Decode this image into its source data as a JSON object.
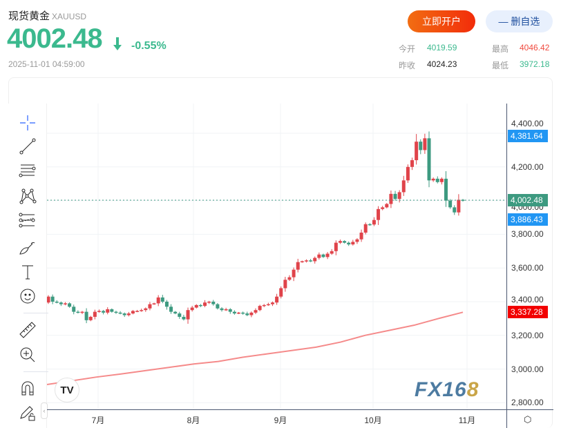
{
  "header": {
    "name": "现货黄金",
    "symbol": "XAUUSD",
    "price": "4002.48",
    "change": "-0.55%",
    "timestamp": "2025-11-01 04:59:00",
    "direction": "down"
  },
  "buttons": {
    "open_account": "立即开户",
    "remove_watch": "— 删自选"
  },
  "stats": {
    "open_label": "今开",
    "open": "4019.59",
    "high_label": "最高",
    "high": "4046.42",
    "prev_close_label": "昨收",
    "prev_close": "4024.23",
    "low_label": "最低",
    "low": "3972.18"
  },
  "colors": {
    "up": "#e0434a",
    "down": "#3d9a80",
    "accent_green": "#3bb98e",
    "ma": "#f58a8a",
    "tag_blue": "#2196f3",
    "tag_red": "#f20000"
  },
  "toolbar": [
    "crosshair-icon",
    "trend-line-icon",
    "horizontal-lines-icon",
    "pattern-icon",
    "fib-icon",
    "brush-icon",
    "text-icon",
    "emoji-icon",
    "ruler-icon",
    "zoom-in-icon",
    "magnet-icon",
    "lock-pencil-icon"
  ],
  "chart_data": {
    "type": "candlestick",
    "y_ticks": [
      "4,400.00",
      "4,200.00",
      "4,000.00",
      "3,800.00",
      "3,600.00",
      "3,400.00",
      "3,200.00",
      "3,000.00",
      "2,800.00"
    ],
    "y_tick_values": [
      4400,
      4200,
      4000,
      3800,
      3600,
      3400,
      3200,
      3000,
      2800
    ],
    "x_ticks": [
      "7月",
      "8月",
      "9月",
      "10月",
      "11月"
    ],
    "price_tags": [
      {
        "label": "4,381.64",
        "value": 4381.64,
        "color": "#2196f3"
      },
      {
        "label": "4,002.48",
        "value": 4002.48,
        "color": "#3d9a80"
      },
      {
        "label": "3,886.43",
        "value": 3886.43,
        "color": "#2196f3"
      },
      {
        "label": "3,337.28",
        "value": 3337.28,
        "color": "#f20000"
      }
    ],
    "last_price": 4002.48,
    "first_open": 3395,
    "closes": [
      3430,
      3400,
      3395,
      3385,
      3390,
      3370,
      3340,
      3335,
      3340,
      3290,
      3310,
      3340,
      3345,
      3335,
      3355,
      3340,
      3335,
      3330,
      3320,
      3330,
      3345,
      3345,
      3350,
      3360,
      3385,
      3390,
      3425,
      3400,
      3370,
      3340,
      3330,
      3310,
      3295,
      3350,
      3365,
      3380,
      3375,
      3395,
      3400,
      3385,
      3360,
      3350,
      3355,
      3340,
      3330,
      3335,
      3330,
      3320,
      3335,
      3350,
      3375,
      3380,
      3385,
      3395,
      3430,
      3480,
      3530,
      3545,
      3590,
      3635,
      3640,
      3645,
      3640,
      3660,
      3680,
      3665,
      3685,
      3700,
      3750,
      3760,
      3750,
      3740,
      3755,
      3770,
      3810,
      3860,
      3858,
      3885,
      3950,
      3960,
      3980,
      4040,
      4010,
      4050,
      4120,
      4200,
      4240,
      4350,
      4300,
      4370,
      4120,
      4130,
      4110,
      4130,
      4000,
      3960,
      3930,
      4005,
      4002.48
    ],
    "ma_series": [
      2908,
      2930,
      2952,
      2970,
      2990,
      3010,
      3030,
      3045,
      3070,
      3090,
      3110,
      3130,
      3160,
      3200,
      3230,
      3260,
      3300,
      3337.28
    ]
  },
  "watermark": "FX168"
}
